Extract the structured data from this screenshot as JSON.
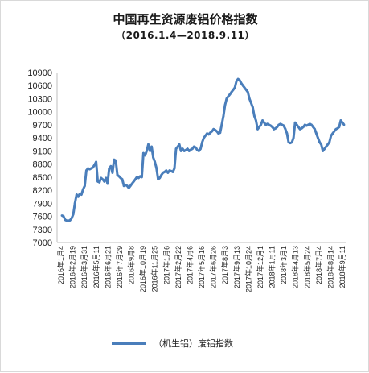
{
  "chart_data": {
    "type": "line",
    "title": "中国再生资源废铝价格指数",
    "subtitle": "（2016.1.4—2018.9.11）",
    "ylim": [
      7000,
      10900
    ],
    "yticks": [
      7000,
      7300,
      7600,
      7900,
      8200,
      8500,
      8800,
      9100,
      9400,
      9700,
      10000,
      10300,
      10600,
      10900
    ],
    "x_tick_labels": [
      "2016年1月4",
      "2016年2月19",
      "2016年3月31",
      "2016年5月11",
      "2016年6月21",
      "2016年7月29",
      "2016年9月8",
      "2016年10月19",
      "2016年11月25",
      "2017年1月6",
      "2017年2月22",
      "2017年4月6",
      "2017年5月16",
      "2017年6月26",
      "2017年8月3",
      "2017年9月13",
      "2017年10月24",
      "2017年12月1",
      "2018年1月11",
      "2018年3月1",
      "2018年4月13",
      "2018年5月24",
      "2018年7月4",
      "2018年8月14",
      "2018年9月11"
    ],
    "series": [
      {
        "name": "（机生铝）废铝指数",
        "color": "#4a7ebb",
        "values": [
          7620,
          7600,
          7520,
          7500,
          7500,
          7510,
          7560,
          7650,
          7900,
          8100,
          8050,
          8120,
          8100,
          8220,
          8300,
          8650,
          8700,
          8680,
          8700,
          8720,
          8780,
          8850,
          8400,
          8380,
          8480,
          8450,
          8400,
          8480,
          8350,
          8700,
          8750,
          8600,
          8900,
          8880,
          8550,
          8520,
          8480,
          8450,
          8300,
          8320,
          8300,
          8250,
          8300,
          8350,
          8400,
          8450,
          8500,
          8480,
          8520,
          8500,
          9050,
          9000,
          9100,
          9250,
          9100,
          9200,
          8950,
          8850,
          8700,
          8450,
          8480,
          8550,
          8600,
          8620,
          8650,
          8600,
          8650,
          8640,
          8620,
          8700,
          9150,
          9200,
          9250,
          9100,
          9150,
          9100,
          9120,
          9150,
          9100,
          9130,
          9150,
          9200,
          9180,
          9120,
          9100,
          9150,
          9300,
          9400,
          9450,
          9500,
          9480,
          9520,
          9550,
          9600,
          9580,
          9550,
          9500,
          9520,
          9700,
          9900,
          10150,
          10300,
          10350,
          10400,
          10450,
          10500,
          10550,
          10700,
          10750,
          10720,
          10650,
          10600,
          10550,
          10500,
          10450,
          10300,
          10200,
          10100,
          9900,
          9800,
          9600,
          9650,
          9700,
          9800,
          9750,
          9700,
          9720,
          9700,
          9680,
          9650,
          9600,
          9620,
          9650,
          9700,
          9720,
          9700,
          9680,
          9600,
          9500,
          9300,
          9280,
          9300,
          9400,
          9750,
          9700,
          9650,
          9600,
          9620,
          9650,
          9700,
          9680,
          9700,
          9720,
          9700,
          9650,
          9600,
          9500,
          9400,
          9300,
          9250,
          9100,
          9150,
          9200,
          9250,
          9300,
          9450,
          9500,
          9550,
          9600,
          9620,
          9650,
          9800,
          9750,
          9700
        ]
      }
    ],
    "legend_position": "bottom",
    "grid": false
  }
}
